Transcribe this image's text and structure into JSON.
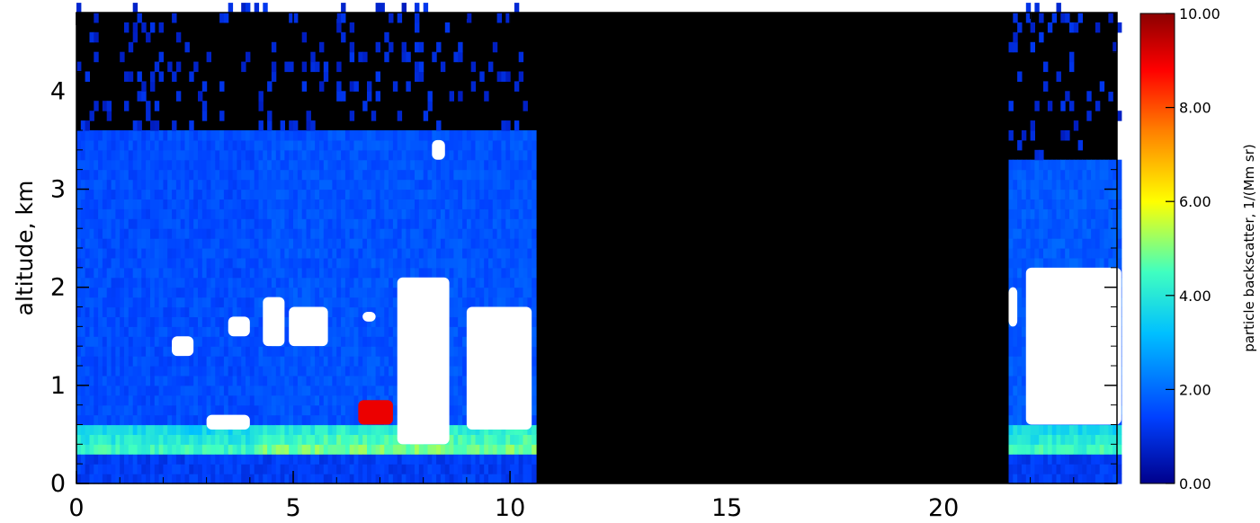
{
  "chart_data": {
    "type": "heatmap",
    "ylabel": "altitude, km",
    "xlim": [
      0,
      24
    ],
    "ylim": [
      0,
      4.8
    ],
    "x_ticks": [
      "0",
      "5",
      "10",
      "15",
      "20"
    ],
    "y_ticks": [
      "0",
      "1",
      "2",
      "3",
      "4"
    ],
    "grid": false,
    "colorbar": {
      "label": "particle backscatter, 1/(Mm sr)",
      "ticks": [
        "0.00",
        "2.00",
        "4.00",
        "6.00",
        "8.00",
        "10.00"
      ],
      "range": [
        0,
        10
      ],
      "colormap": [
        "#00008b",
        "#0040ff",
        "#00c0ff",
        "#40ffc0",
        "#ffff00",
        "#ff8000",
        "#ff0000",
        "#8b0000"
      ]
    },
    "no_data_intervals": [
      [
        10.6,
        21.5
      ]
    ],
    "no_data_color": "#000000",
    "profiles": [
      {
        "x": [
          0,
          4.2
        ],
        "layer_top": 3.55,
        "background": 1.3,
        "surface_value": 4.0
      },
      {
        "x": [
          4.2,
          10.6
        ],
        "layer_top": 3.55,
        "background": 1.4,
        "surface_value": 4.5
      },
      {
        "x": [
          21.5,
          24.1
        ],
        "layer_top": 3.3,
        "background": 1.5,
        "surface_value": 4.0
      }
    ],
    "features": [
      {
        "x": [
          2.2,
          2.7
        ],
        "y": [
          1.3,
          1.5
        ],
        "value": 10
      },
      {
        "x": [
          3.0,
          4.0
        ],
        "y": [
          0.55,
          0.7
        ],
        "value": 10
      },
      {
        "x": [
          3.5,
          4.0
        ],
        "y": [
          1.5,
          1.7
        ],
        "value": 10
      },
      {
        "x": [
          4.3,
          4.8
        ],
        "y": [
          1.4,
          1.9
        ],
        "value": 10
      },
      {
        "x": [
          4.9,
          5.8
        ],
        "y": [
          1.4,
          1.8
        ],
        "value": 10
      },
      {
        "x": [
          6.6,
          6.9
        ],
        "y": [
          1.65,
          1.75
        ],
        "value": 10
      },
      {
        "x": [
          6.5,
          7.3
        ],
        "y": [
          0.6,
          0.85
        ],
        "value": 9
      },
      {
        "x": [
          7.4,
          8.6
        ],
        "y": [
          0.4,
          2.1
        ],
        "value": 10
      },
      {
        "x": [
          8.2,
          8.5
        ],
        "y": [
          3.3,
          3.5
        ],
        "value": 10
      },
      {
        "x": [
          9.0,
          10.5
        ],
        "y": [
          0.55,
          1.8
        ],
        "value": 10
      },
      {
        "x": [
          21.5,
          21.7
        ],
        "y": [
          1.6,
          2.0
        ],
        "value": 10
      },
      {
        "x": [
          21.9,
          24.1
        ],
        "y": [
          0.6,
          2.2
        ],
        "value": 10
      }
    ]
  }
}
